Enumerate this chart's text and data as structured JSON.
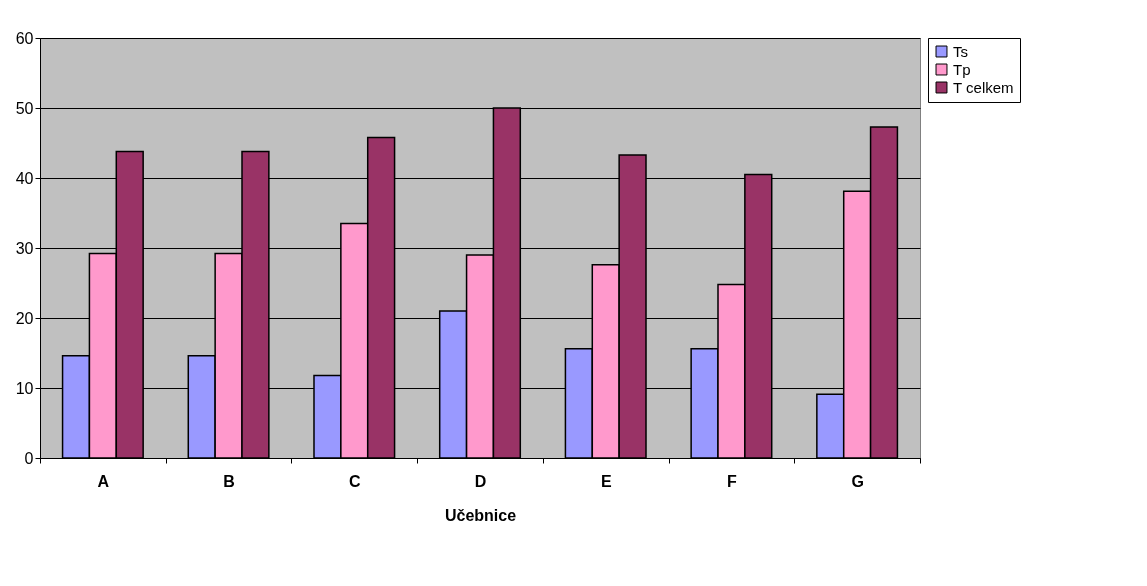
{
  "chart_data": {
    "type": "bar",
    "xlabel": "Učebnice",
    "categories": [
      "A",
      "B",
      "C",
      "D",
      "E",
      "F",
      "G"
    ],
    "series": [
      {
        "name": "Ts",
        "color": "#9999ff",
        "values": [
          14.6,
          14.6,
          11.8,
          21.0,
          15.6,
          15.6,
          9.1
        ]
      },
      {
        "name": "Tp",
        "color": "#ff99cc",
        "values": [
          29.2,
          29.2,
          33.5,
          29.0,
          27.6,
          24.8,
          38.1
        ]
      },
      {
        "name": "T celkem",
        "color": "#993366",
        "values": [
          43.8,
          43.8,
          45.8,
          50.0,
          43.3,
          40.5,
          47.3
        ]
      }
    ],
    "ylim": [
      0,
      60
    ],
    "yticks": [
      0,
      10,
      20,
      30,
      40,
      50,
      60
    ],
    "grid": "y",
    "legend": "right"
  }
}
